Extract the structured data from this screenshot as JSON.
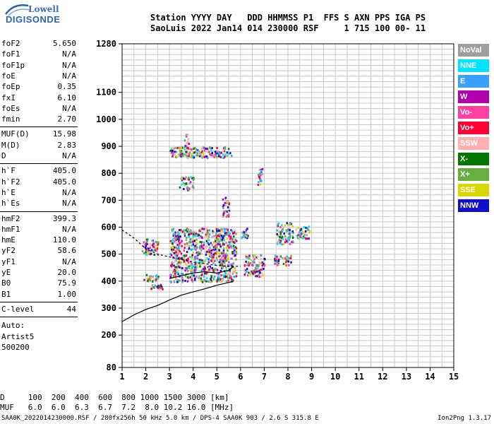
{
  "logo": {
    "line1": "Lowell",
    "line2": "DIGISONDE"
  },
  "header": {
    "line1": "Station YYYY DAY   DDD HHMMSS P1  FFS S AXN PPS IGA PS",
    "line2": "SaoLuis 2022 Jan14 014 230000 RSF     1 715 100 00- 11"
  },
  "params": {
    "group1": [
      {
        "k": "foF2",
        "v": "5.650"
      },
      {
        "k": "foF1",
        "v": "N/A"
      },
      {
        "k": "foF1p",
        "v": "N/A"
      },
      {
        "k": "foE",
        "v": "N/A"
      },
      {
        "k": "foEp",
        "v": "0.35"
      },
      {
        "k": "fxI",
        "v": "6.10"
      },
      {
        "k": "foEs",
        "v": "N/A"
      },
      {
        "k": "fmin",
        "v": "2.70"
      }
    ],
    "group2": [
      {
        "k": "MUF(D)",
        "v": "15.98"
      },
      {
        "k": "M(D)",
        "v": "2.83"
      },
      {
        "k": "D",
        "v": "N/A"
      }
    ],
    "group3": [
      {
        "k": "h`F",
        "v": "405.0"
      },
      {
        "k": "h`F2",
        "v": "405.0"
      },
      {
        "k": "h`E",
        "v": "N/A"
      },
      {
        "k": "h`Es",
        "v": "N/A"
      }
    ],
    "group4": [
      {
        "k": "hmF2",
        "v": "399.3"
      },
      {
        "k": "hmF1",
        "v": "N/A"
      },
      {
        "k": "hmE",
        "v": "110.0"
      },
      {
        "k": "yF2",
        "v": "58.6"
      },
      {
        "k": "yF1",
        "v": "N/A"
      },
      {
        "k": "yE",
        "v": "20.0"
      },
      {
        "k": "B0",
        "v": "75.9"
      },
      {
        "k": "B1",
        "v": "1.00"
      }
    ],
    "group5": [
      {
        "k": "C-level",
        "v": "44"
      }
    ],
    "auto": [
      "Auto:",
      "Artist5",
      "500200"
    ]
  },
  "legend": [
    {
      "label": "NoVal",
      "color": "#9e9e9e"
    },
    {
      "label": "NNE",
      "color": "#00e5ff"
    },
    {
      "label": "E",
      "color": "#3aa0ff"
    },
    {
      "label": "W",
      "color": "#b000b0"
    },
    {
      "label": "Vo-",
      "color": "#ff40a0"
    },
    {
      "label": "Vo+",
      "color": "#ff0033"
    },
    {
      "label": "SSW",
      "color": "#ffb0b0"
    },
    {
      "label": "X-",
      "color": "#007700"
    },
    {
      "label": "X+",
      "color": "#66b040"
    },
    {
      "label": "SSE",
      "color": "#d8d800"
    },
    {
      "label": "NNW",
      "color": "#1010cc"
    }
  ],
  "bottom": {
    "line1": "D     100  200  400  600  800 1000 1500 3000 [km]",
    "line2": "MUF   6.0  6.0  6.3  6.7  7.2  8.0 10.2 16.0 [MHz]"
  },
  "footer": {
    "left": "SAA0K_2022014230000.RSF / 280fx256h 50 kHz 5.0 km / DPS-4 SAA0K 903 / 2.6 S 315.8 E",
    "right": "Ion2Png 1.3.17"
  },
  "chart_data": {
    "type": "scatter",
    "title": "",
    "xlabel": "",
    "ylabel": "",
    "xlim": [
      1,
      15
    ],
    "ylim": [
      80,
      1280
    ],
    "xticks": [
      1,
      2,
      3,
      4,
      5,
      6,
      7,
      8,
      9,
      10,
      11,
      12,
      13,
      14,
      15
    ],
    "yticks": [
      80,
      200,
      300,
      400,
      500,
      600,
      700,
      800,
      900,
      1000,
      1100,
      1280
    ],
    "grid": true,
    "series": [
      {
        "name": "profile",
        "points": [
          [
            1.0,
            250
          ],
          [
            1.5,
            275
          ],
          [
            2.0,
            295
          ],
          [
            2.5,
            310
          ],
          [
            3.0,
            330
          ],
          [
            3.5,
            348
          ],
          [
            4.0,
            360
          ],
          [
            4.5,
            372
          ],
          [
            5.0,
            385
          ],
          [
            5.5,
            395
          ],
          [
            5.7,
            400
          ]
        ]
      },
      {
        "name": "trace",
        "points": [
          [
            3.0,
            410
          ],
          [
            3.5,
            420
          ],
          [
            4.0,
            430
          ],
          [
            4.5,
            435
          ],
          [
            5.0,
            430
          ],
          [
            5.5,
            440
          ],
          [
            5.7,
            455
          ]
        ]
      },
      {
        "name": "trace-dashed",
        "points": [
          [
            1.0,
            590
          ],
          [
            1.5,
            560
          ],
          [
            2.0,
            520
          ],
          [
            2.5,
            500
          ],
          [
            3.0,
            490
          ],
          [
            3.5,
            480
          ],
          [
            4.0,
            470
          ],
          [
            4.5,
            465
          ],
          [
            5.0,
            458
          ],
          [
            5.5,
            455
          ],
          [
            6.0,
            455
          ]
        ]
      }
    ],
    "echo_clusters": [
      {
        "x": [
          1.9,
          2.5
        ],
        "y": [
          400,
          430
        ]
      },
      {
        "x": [
          2.2,
          2.7
        ],
        "y": [
          370,
          390
        ]
      },
      {
        "x": [
          1.8,
          2.5
        ],
        "y": [
          500,
          560
        ]
      },
      {
        "x": [
          3.0,
          5.8
        ],
        "y": [
          400,
          600
        ]
      },
      {
        "x": [
          3.4,
          4.0
        ],
        "y": [
          740,
          790
        ]
      },
      {
        "x": [
          3.6,
          3.8
        ],
        "y": [
          860,
          950
        ]
      },
      {
        "x": [
          3.0,
          5.6
        ],
        "y": [
          860,
          900
        ]
      },
      {
        "x": [
          5.2,
          5.5
        ],
        "y": [
          640,
          720
        ]
      },
      {
        "x": [
          6.1,
          7.0
        ],
        "y": [
          420,
          500
        ]
      },
      {
        "x": [
          6.0,
          6.3
        ],
        "y": [
          560,
          600
        ]
      },
      {
        "x": [
          7.5,
          8.2
        ],
        "y": [
          540,
          620
        ]
      },
      {
        "x": [
          8.3,
          8.9
        ],
        "y": [
          560,
          610
        ]
      },
      {
        "x": [
          7.4,
          8.1
        ],
        "y": [
          460,
          500
        ]
      },
      {
        "x": [
          6.7,
          6.9
        ],
        "y": [
          760,
          820
        ]
      }
    ]
  }
}
